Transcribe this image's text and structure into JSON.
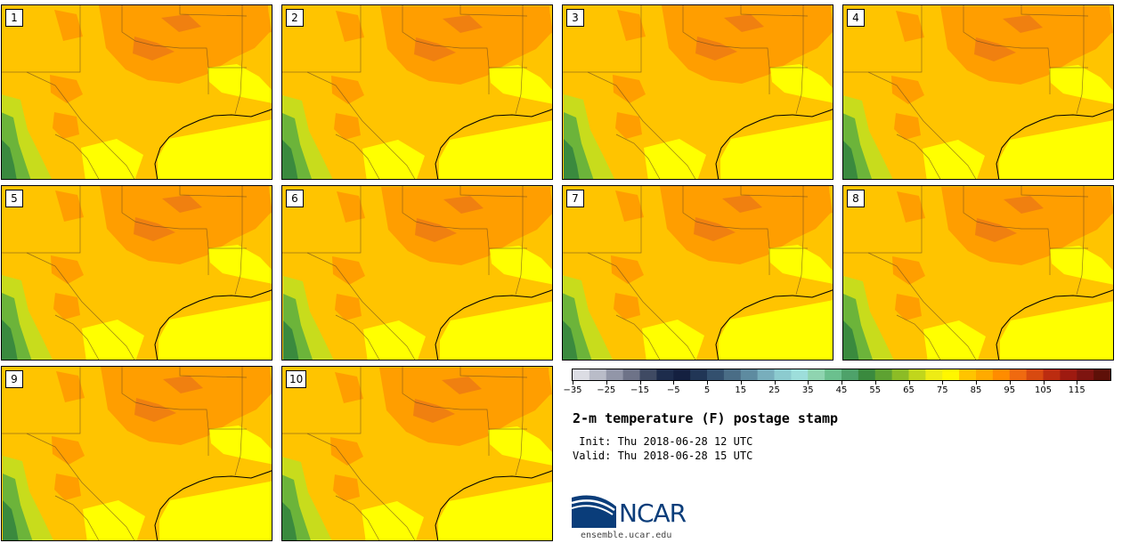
{
  "title": "2-m temperature (F) postage stamp",
  "init_line": " Init: Thu 2018-06-28 12 UTC",
  "valid_line": "Valid: Thu 2018-06-28 15 UTC",
  "website": "ensemble.ucar.edu",
  "logo_text": "NCAR",
  "members": [
    {
      "label": "1"
    },
    {
      "label": "2"
    },
    {
      "label": "3"
    },
    {
      "label": "4"
    },
    {
      "label": "5"
    },
    {
      "label": "6"
    },
    {
      "label": "7"
    },
    {
      "label": "8"
    },
    {
      "label": "9"
    },
    {
      "label": "10"
    }
  ],
  "colorbar": {
    "ticks": [
      "−35",
      "−25",
      "−15",
      "−5",
      "5",
      "15",
      "25",
      "35",
      "45",
      "55",
      "65",
      "75",
      "85",
      "95",
      "105",
      "115"
    ],
    "colors": [
      "#dcdde4",
      "#b9bcc8",
      "#9296a8",
      "#6e7388",
      "#3f4a63",
      "#1d2c4c",
      "#142040",
      "#213656",
      "#33506e",
      "#4a6d86",
      "#5e8ba0",
      "#78aebc",
      "#8ccbcf",
      "#9ddedb",
      "#8fd4b0",
      "#6bc08e",
      "#4ea26a",
      "#3a8a3e",
      "#5ea232",
      "#8cbc26",
      "#c1d61c",
      "#eeec14",
      "#fff700",
      "#ffc400",
      "#ffaa00",
      "#ff8c00",
      "#f06a10",
      "#d84a10",
      "#bc2c10",
      "#9e1a10",
      "#7e1410",
      "#5e1008"
    ]
  },
  "colors": {
    "ocean": "#ffff00",
    "land": "#ffc400",
    "warm": "#ff9e00",
    "hot": "#f08010",
    "cool": "#c8dc1c",
    "cooler": "#6cb43a",
    "coolest": "#3a8a3e",
    "logo_blue": "#0a3d7a"
  }
}
